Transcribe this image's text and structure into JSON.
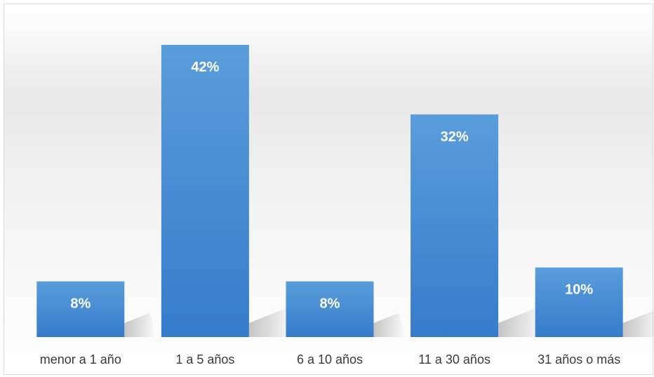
{
  "chart_data": {
    "type": "bar",
    "categories": [
      "menor a 1 año",
      "1 a 5 años",
      "6 a 10 años",
      "11 a 30 años",
      "31 años o más"
    ],
    "values": [
      8,
      42,
      8,
      32,
      10
    ],
    "data_labels": [
      "8%",
      "42%",
      "8%",
      "32%",
      "10%"
    ],
    "ylim": [
      0,
      42
    ],
    "grid": false,
    "legend": "none",
    "bar_color": "#4a8fd4",
    "bar_color_bottom": "#3a7fcb"
  }
}
